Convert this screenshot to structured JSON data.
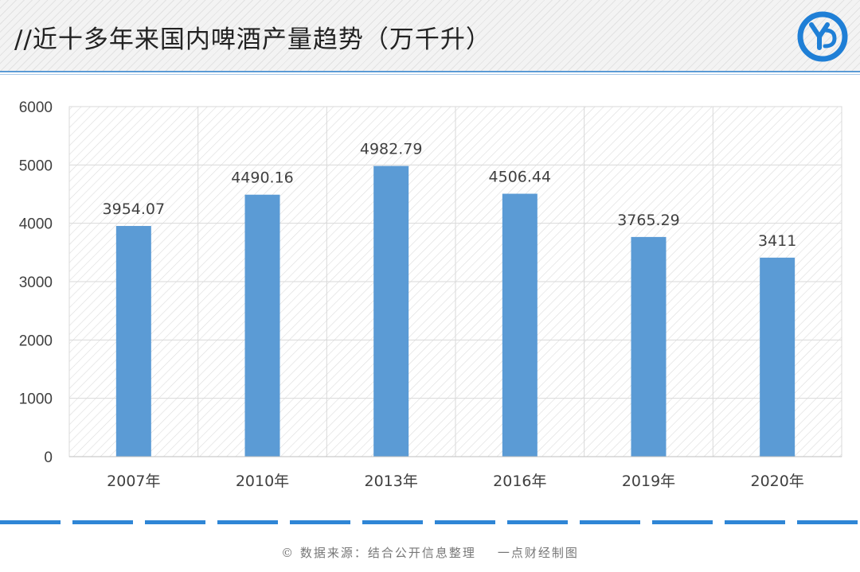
{
  "header": {
    "title": "//近十多年来国内啤酒产量趋势（万千升）"
  },
  "logo": {
    "icon": "yd-logo-icon",
    "color": "#1f7fd6"
  },
  "colors": {
    "bar": "#5b9bd5",
    "accent": "#2f86d6"
  },
  "chart_data": {
    "type": "bar",
    "categories": [
      "2007年",
      "2010年",
      "2013年",
      "2016年",
      "2019年",
      "2020年"
    ],
    "values": [
      3954.07,
      4490.16,
      4982.79,
      4506.44,
      3765.29,
      3411
    ],
    "data_labels": [
      "3954.07",
      "4490.16",
      "4982.79",
      "4506.44",
      "3765.29",
      "3411"
    ],
    "y_ticks": [
      "0",
      "1000",
      "2000",
      "3000",
      "4000",
      "5000",
      "6000"
    ],
    "ylim": [
      0,
      6000
    ],
    "title": "",
    "xlabel": "",
    "ylabel": "",
    "grid": true,
    "legend": "none"
  },
  "footer": {
    "text": "© 数据来源：结合公开信息整理    一点财经制图"
  }
}
